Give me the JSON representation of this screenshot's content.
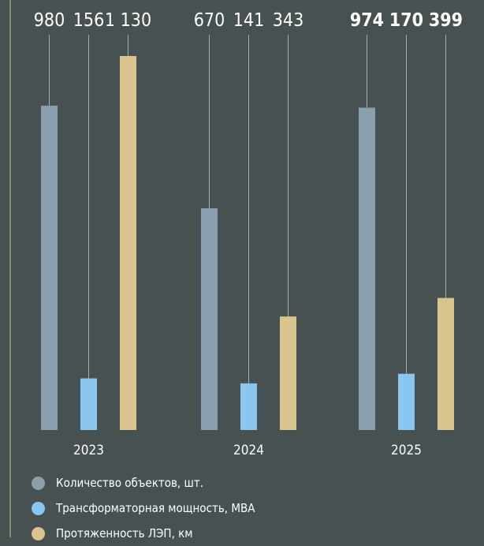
{
  "chart_data": {
    "type": "bar",
    "categories": [
      "2023",
      "2024",
      "2025"
    ],
    "series": [
      {
        "name": "Количество объектов, шт.",
        "color": "#8a9fae",
        "values": [
          980,
          670,
          974
        ],
        "labels": [
          "980",
          "670",
          "974"
        ]
      },
      {
        "name": "Трансформаторная мощность, МВА",
        "color": "#8ac6ee",
        "values": [
          156,
          141,
          170
        ],
        "labels": [
          "156",
          "141",
          "170"
        ]
      },
      {
        "name": "Протяженность ЛЭП, км",
        "color": "#d8c48c",
        "values": [
          1130,
          343,
          399
        ],
        "labels": [
          "1 130",
          "343",
          "399"
        ]
      }
    ],
    "bold_label_categories": [
      "2025"
    ],
    "legend_position": "bottom-left"
  }
}
